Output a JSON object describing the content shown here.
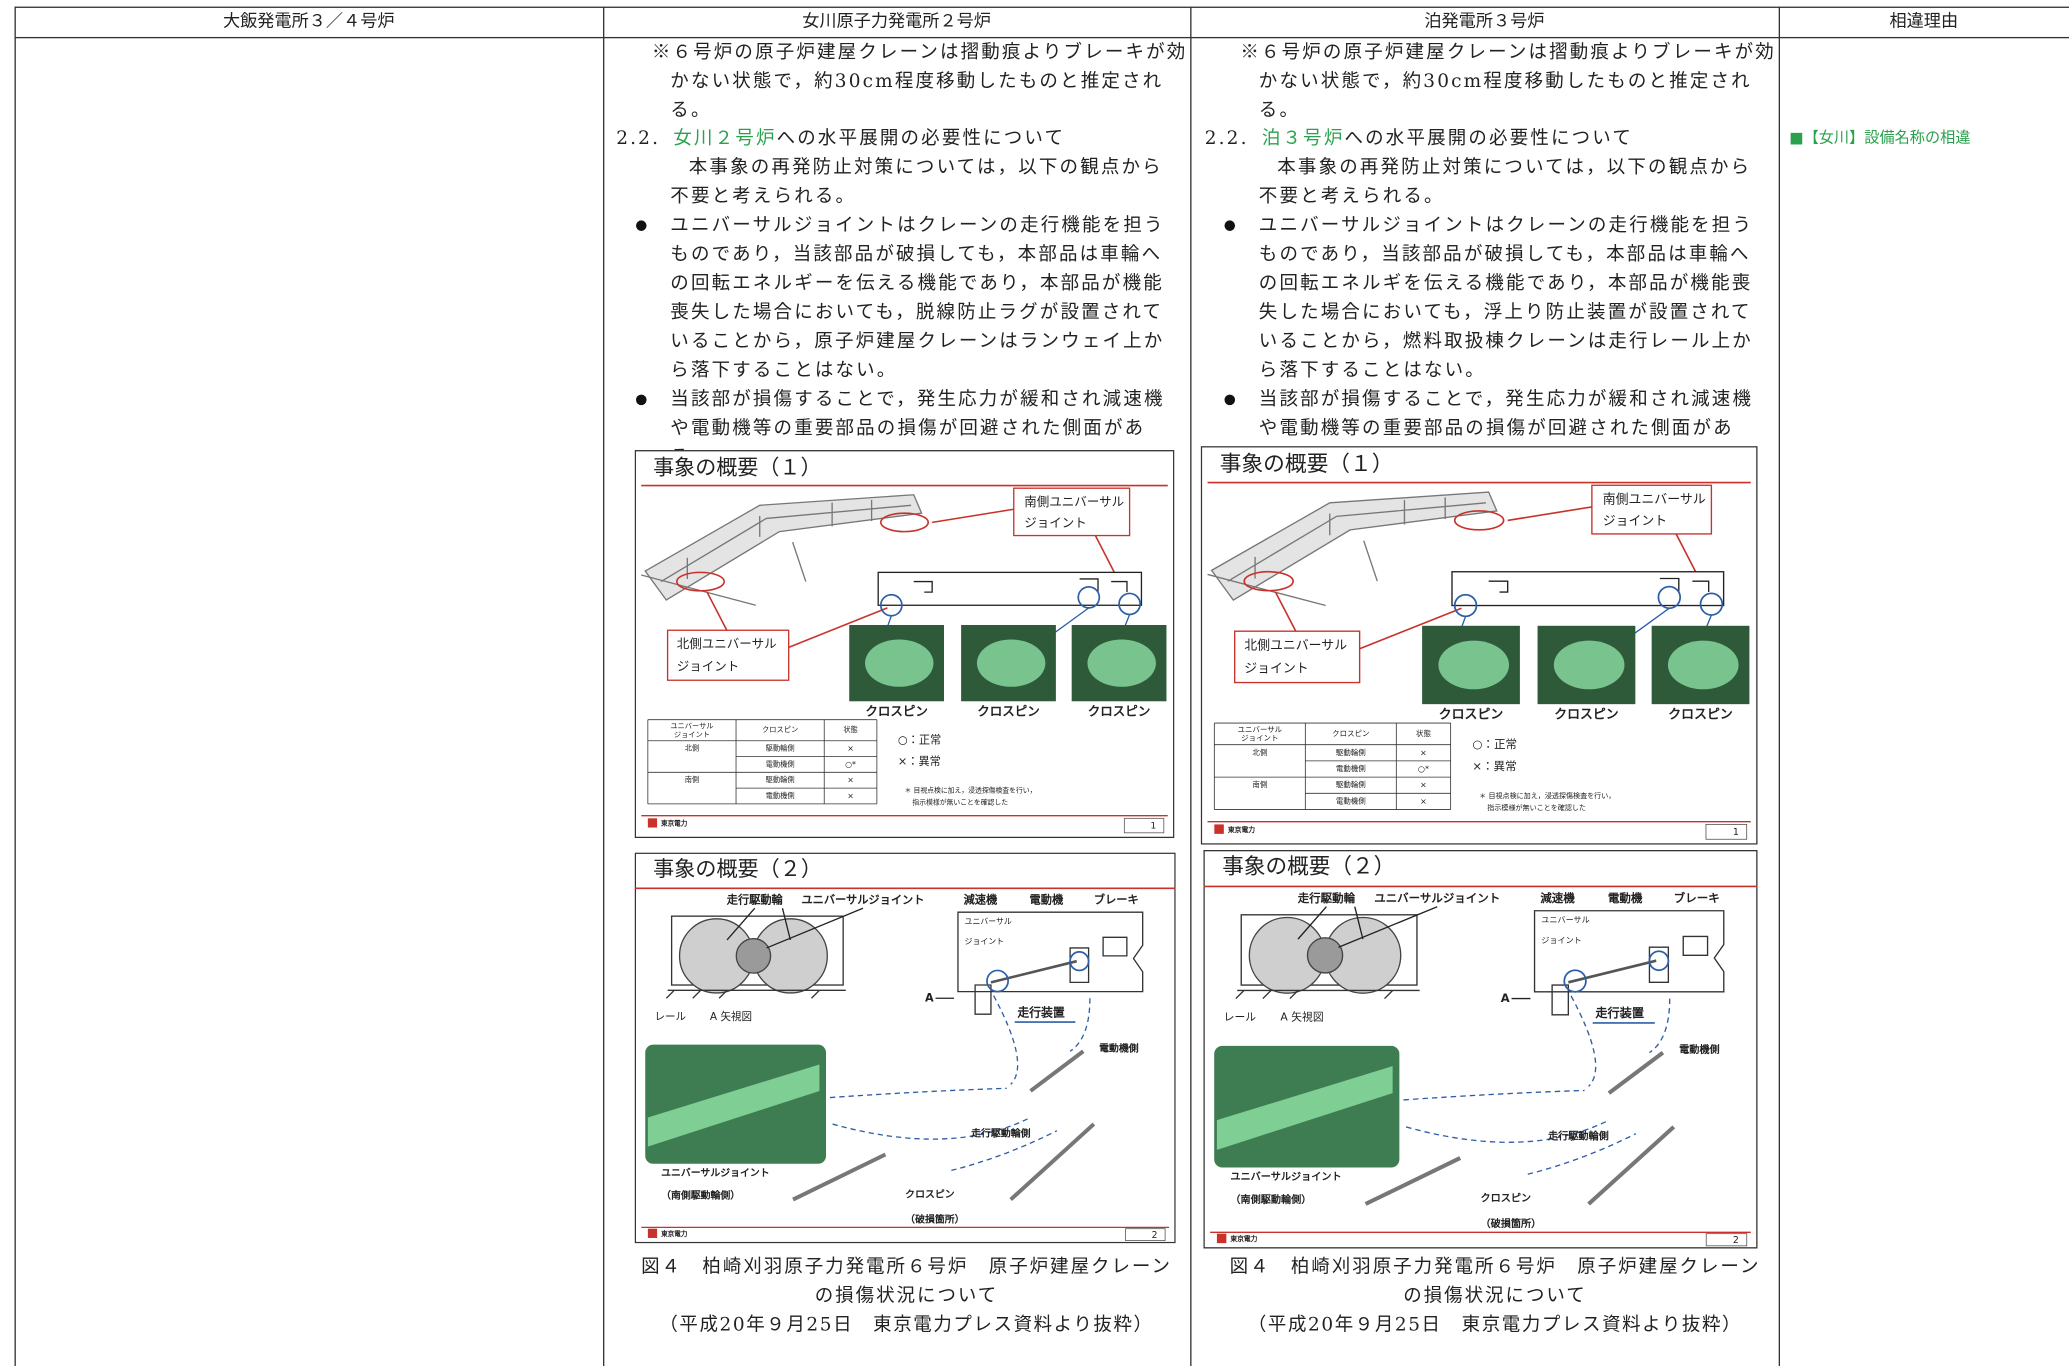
{
  "header": {
    "columns": [
      "大飯発電所３／４号炉",
      "女川原子力発電所２号炉",
      "泊発電所３号炉",
      "相違理由"
    ]
  },
  "reason": "■【女川】設備名称の相違",
  "columns": [
    {
      "note": "※６号炉の原子炉建屋クレーンは摺動痕よりブレーキが効かない状態で，約30cm程度移動したものと推定される。",
      "section": {
        "number": "2.2.",
        "highlight": "女川２号炉",
        "text": "への水平展開の必要性について"
      },
      "intro": "本事象の再発防止対策については，以下の観点から不要と考えられる。",
      "bullets": [
        "ユニバーサルジョイントはクレーンの走行機能を担うものであり，当該部品が破損しても，本部品は車輪への回転エネルギーを伝える機能であり，本部品が機能喪失した場合においても，脱線防止ラグが設置されていることから，原子炉建屋クレーンはランウェイ上から落下することはない。",
        "当該部が損傷することで，発生応力が緩和され減速機や電動機等の重要部品の損傷が回避された側面がある。"
      ],
      "figure1": {
        "title": "事象の概要（１）",
        "south_label": [
          "南側ユニバーサル",
          "ジョイント"
        ],
        "north_label": [
          "北側ユニバーサル",
          "ジョイント"
        ],
        "photo_labels": [
          "クロスピン",
          "クロスピン",
          "クロスピン"
        ],
        "table": {
          "header": [
            [
              "ユニバーサル",
              "ジョイント"
            ],
            "クロスピン",
            "状態"
          ],
          "rows": [
            {
              "joint": "北側",
              "pins": [
                [
                  "駆動輪側",
                  "×"
                ],
                [
                  "電動機側",
                  "○*"
                ]
              ]
            },
            {
              "joint": "南側",
              "pins": [
                [
                  "駆動輪側",
                  "×"
                ],
                [
                  "電動機側",
                  "×"
                ]
              ]
            }
          ]
        },
        "legend": [
          "○：正常",
          "×：異常"
        ],
        "note": [
          "＊ 目視点検に加え，浸透探傷検査を行い，",
          "指示模様が無いことを確認した"
        ],
        "logo": "東京電力",
        "page": 1
      },
      "figure2": {
        "title": "事象の概要（２）",
        "wheel": "走行駆動輪",
        "joint": "ユニバーサルジョイント",
        "reducer": "減速機",
        "motor": "電動機",
        "brake": "ブレーキ",
        "joint_small": [
          "ユニバーサル",
          "ジョイント"
        ],
        "rail": "レール",
        "view": "A 矢視図",
        "a": "A",
        "unit": "走行装置",
        "motor_side": "電動機側",
        "wheel_side": "走行駆動輪側",
        "photo_label": [
          "ユニバーサルジョイント",
          "（南側駆動輪側）"
        ],
        "crosspin": [
          "クロスピン",
          "（破損箇所）"
        ],
        "logo": "東京電力",
        "page": 2
      },
      "caption": [
        "図４　柏崎刈羽原子力発電所６号炉　原子炉建屋クレーンの損傷状況について",
        "（平成20年９月25日　東京電力プレス資料より抜粋）"
      ]
    },
    {
      "note": "※６号炉の原子炉建屋クレーンは摺動痕よりブレーキが効かない状態で，約30cm程度移動したものと推定される。",
      "section": {
        "number": "2.2.",
        "highlight": "泊３号炉",
        "text": "への水平展開の必要性について"
      },
      "intro": "本事象の再発防止対策については，以下の観点から不要と考えられる。",
      "bullets": [
        "ユニバーサルジョイントはクレーンの走行機能を担うものであり，当該部品が破損しても，本部品は車輪への回転エネルギを伝える機能であり，本部品が機能喪失した場合においても，浮上り防止装置が設置されていることから，燃料取扱棟クレーンは走行レール上から落下することはない。",
        "当該部が損傷することで，発生応力が緩和され減速機や電動機等の重要部品の損傷が回避された側面がある。"
      ],
      "figure1": {
        "title": "事象の概要（１）",
        "south_label": [
          "南側ユニバーサル",
          "ジョイント"
        ],
        "north_label": [
          "北側ユニバーサル",
          "ジョイント"
        ],
        "photo_labels": [
          "クロスピン",
          "クロスピン",
          "クロスピン"
        ],
        "table": {
          "header": [
            [
              "ユニバーサル",
              "ジョイント"
            ],
            "クロスピン",
            "状態"
          ],
          "rows": [
            {
              "joint": "北側",
              "pins": [
                [
                  "駆動輪側",
                  "×"
                ],
                [
                  "電動機側",
                  "○*"
                ]
              ]
            },
            {
              "joint": "南側",
              "pins": [
                [
                  "駆動輪側",
                  "×"
                ],
                [
                  "電動機側",
                  "×"
                ]
              ]
            }
          ]
        },
        "legend": [
          "○：正常",
          "×：異常"
        ],
        "note": [
          "＊ 目視点検に加え，浸透探傷検査を行い，",
          "指示模様が無いことを確認した"
        ],
        "logo": "東京電力",
        "page": 1
      },
      "figure2": {
        "title": "事象の概要（２）",
        "wheel": "走行駆動輪",
        "joint": "ユニバーサルジョイント",
        "reducer": "減速機",
        "motor": "電動機",
        "brake": "ブレーキ",
        "joint_small": [
          "ユニバーサル",
          "ジョイント"
        ],
        "rail": "レール",
        "view": "A 矢視図",
        "a": "A",
        "unit": "走行装置",
        "motor_side": "電動機側",
        "wheel_side": "走行駆動輪側",
        "photo_label": [
          "ユニバーサルジョイント",
          "（南側駆動輪側）"
        ],
        "crosspin": [
          "クロスピン",
          "（破損箇所）"
        ],
        "logo": "東京電力",
        "page": 2
      },
      "caption": [
        "図４　柏崎刈羽原子力発電所６号炉　原子炉建屋クレーンの損傷状況について",
        "（平成20年９月25日　東京電力プレス資料より抜粋）"
      ]
    }
  ]
}
